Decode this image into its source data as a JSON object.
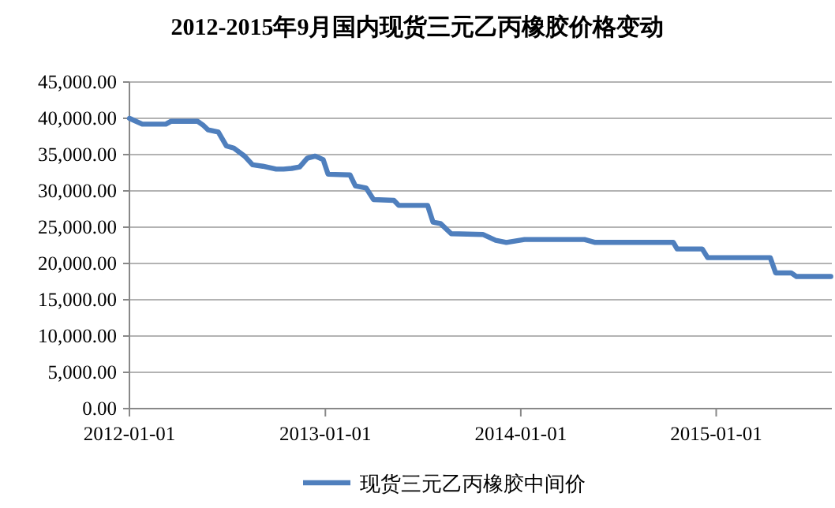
{
  "chart_data": {
    "type": "line",
    "title": "2012-2015年9月国内现货三元乙丙橡胶价格变动",
    "x": [
      "2012-01-01",
      "2012-01-25",
      "2012-03-09",
      "2012-03-19",
      "2012-05-07",
      "2012-05-17",
      "2012-05-27",
      "2012-06-15",
      "2012-06-30",
      "2012-07-14",
      "2012-08-03",
      "2012-08-18",
      "2012-09-06",
      "2012-10-01",
      "2012-10-15",
      "2012-10-30",
      "2012-11-14",
      "2012-11-28",
      "2012-12-13",
      "2012-12-28",
      "2013-01-06",
      "2013-02-16",
      "2013-02-26",
      "2013-03-18",
      "2013-04-01",
      "2013-05-09",
      "2013-05-18",
      "2013-07-11",
      "2013-07-21",
      "2013-08-04",
      "2013-08-24",
      "2013-10-22",
      "2013-11-15",
      "2013-12-05",
      "2014-01-08",
      "2014-04-30",
      "2014-05-20",
      "2014-10-13",
      "2014-10-20",
      "2014-12-06",
      "2014-12-16",
      "2015-04-12",
      "2015-04-22",
      "2015-05-21",
      "2015-05-31",
      "2015-08-03"
    ],
    "series": [
      {
        "name": "现货三元乙丙橡胶中间价",
        "color": "#4f7fbd",
        "values": [
          40000,
          39200,
          39200,
          39600,
          39600,
          39100,
          38400,
          38100,
          36200,
          35900,
          34800,
          33600,
          33400,
          33000,
          33000,
          33100,
          33300,
          34500,
          34800,
          34300,
          32300,
          32200,
          30700,
          30400,
          28800,
          28700,
          28000,
          28000,
          25700,
          25500,
          24100,
          24000,
          23200,
          22900,
          23300,
          23300,
          22900,
          22900,
          22000,
          22000,
          20800,
          20800,
          18700,
          18700,
          18200,
          18200
        ]
      }
    ],
    "xlim": [
      "2012-01-01",
      "2015-08-05"
    ],
    "xticks": [
      "2012-01-01",
      "2013-01-01",
      "2014-01-01",
      "2015-01-01"
    ],
    "ylim": [
      0,
      45000
    ],
    "yticks": [
      {
        "value": 0,
        "label": "0.00"
      },
      {
        "value": 5000,
        "label": "5,000.00"
      },
      {
        "value": 10000,
        "label": "10,000.00"
      },
      {
        "value": 15000,
        "label": "15,000.00"
      },
      {
        "value": 20000,
        "label": "20,000.00"
      },
      {
        "value": 25000,
        "label": "25,000.00"
      },
      {
        "value": 30000,
        "label": "30,000.00"
      },
      {
        "value": 35000,
        "label": "35,000.00"
      },
      {
        "value": 40000,
        "label": "40,000.00"
      },
      {
        "value": 45000,
        "label": "45,000.00"
      }
    ],
    "grid": "y",
    "legend": "bottom",
    "marker": "none",
    "line_style": "solid"
  }
}
